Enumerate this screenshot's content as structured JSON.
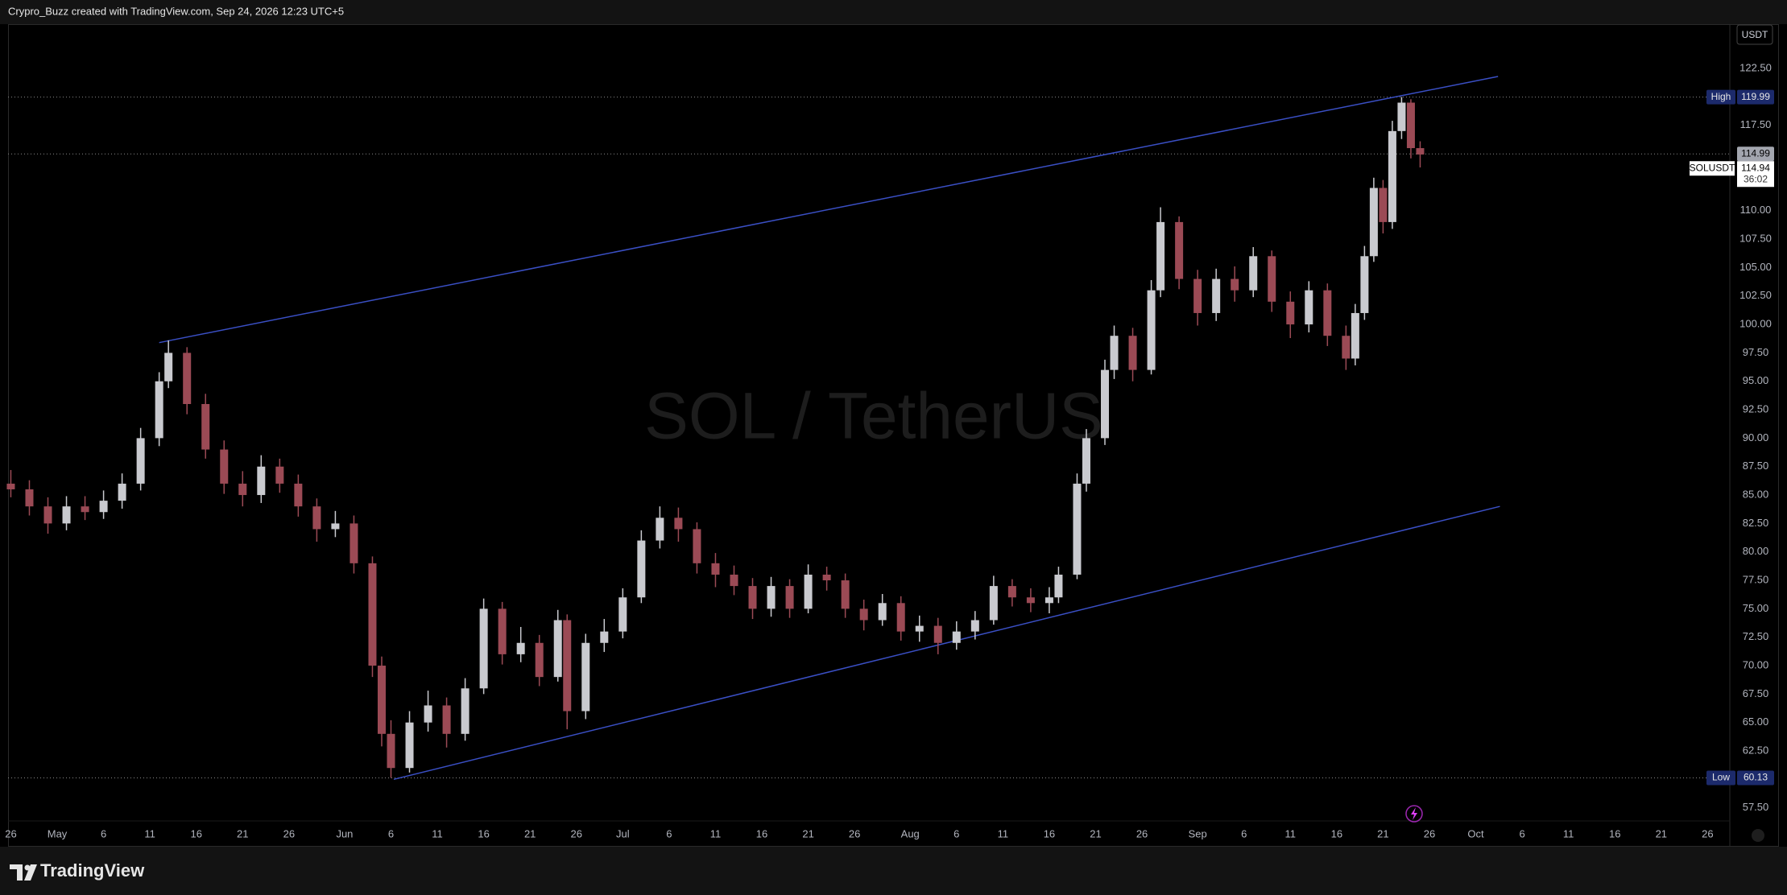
{
  "chart_data": {
    "type": "candlestick",
    "header": "Crypro_Buzz created with TradingView.com, Sep 24, 2026 12:23 UTC+5",
    "title": "SOL / TetherUS",
    "currency": "USDT",
    "symbol": "SOLUSDT",
    "brand": "TradingView",
    "up_color": "#c9cacf",
    "down_color": "#9b4a55",
    "trendline_color": "#3a4fc4",
    "x": [
      116,
      118,
      120,
      122,
      124,
      126,
      128,
      130,
      132,
      133,
      135,
      137,
      139,
      141,
      143,
      145,
      147,
      149,
      151,
      153,
      155,
      156,
      157,
      159,
      161,
      163,
      165,
      167,
      169,
      171,
      173,
      175,
      176,
      178,
      180,
      182,
      184,
      186,
      188,
      190,
      192,
      194,
      196,
      198,
      200,
      202,
      204,
      206,
      208,
      210,
      212,
      214,
      216,
      218,
      220,
      222,
      224,
      226,
      228,
      229,
      231,
      232,
      234,
      235,
      237,
      239,
      240,
      242,
      244,
      246,
      248,
      250,
      252,
      254,
      256,
      258,
      260,
      261,
      262,
      263,
      264,
      265,
      266,
      267,
      268
    ],
    "open": [
      86,
      85.5,
      84,
      82.5,
      84,
      83.5,
      84.5,
      86,
      90,
      95,
      97.5,
      93,
      89,
      86,
      85,
      87.5,
      86,
      84,
      82,
      82.5,
      79,
      70,
      64,
      61,
      65,
      66.5,
      64,
      68,
      75,
      71,
      72,
      69,
      74,
      66,
      72,
      73,
      76,
      81,
      83,
      82,
      79,
      78,
      77,
      75,
      77,
      75,
      78,
      77.5,
      75,
      74,
      75.5,
      73,
      73.5,
      72,
      73,
      74,
      77,
      76,
      75.5,
      76,
      78,
      86,
      90,
      96,
      99,
      96,
      103,
      109,
      104,
      101,
      104,
      103,
      106,
      102,
      100,
      103,
      99,
      97,
      101,
      106,
      112,
      109,
      117,
      119.5,
      115.5
    ],
    "high": [
      87.2,
      86.3,
      84.8,
      84.9,
      84.9,
      85.4,
      86.9,
      90.9,
      95.8,
      98.6,
      98.0,
      93.9,
      89.8,
      87.1,
      88.5,
      88.2,
      86.8,
      84.7,
      83.6,
      83.2,
      79.6,
      70.8,
      65.2,
      66.0,
      67.8,
      67.2,
      68.9,
      75.9,
      75.6,
      73.4,
      72.7,
      74.9,
      74.5,
      72.8,
      74.1,
      76.8,
      81.9,
      84.0,
      83.9,
      82.6,
      79.9,
      78.8,
      77.7,
      77.8,
      77.6,
      78.9,
      78.7,
      78.1,
      75.8,
      76.3,
      76.1,
      74.4,
      74.2,
      73.9,
      74.8,
      77.9,
      77.6,
      76.8,
      76.9,
      78.7,
      86.9,
      90.8,
      96.9,
      99.9,
      99.7,
      103.9,
      110.3,
      109.5,
      104.8,
      104.9,
      105.1,
      106.8,
      106.5,
      102.9,
      103.8,
      103.6,
      99.9,
      101.8,
      106.9,
      112.9,
      112.7,
      117.9,
      119.99,
      119.8,
      116.1
    ],
    "low": [
      84.8,
      83.2,
      81.6,
      81.9,
      82.8,
      82.9,
      83.8,
      85.4,
      89.3,
      94.4,
      92.1,
      88.2,
      85.1,
      84.0,
      84.3,
      85.2,
      83.1,
      80.9,
      81.3,
      78.1,
      69.0,
      62.9,
      60.13,
      60.6,
      64.2,
      62.8,
      63.4,
      67.5,
      70.1,
      70.3,
      68.2,
      68.6,
      64.4,
      65.3,
      71.2,
      72.4,
      75.5,
      80.3,
      80.9,
      78.1,
      76.9,
      76.2,
      74.1,
      74.3,
      74.2,
      74.6,
      76.6,
      74.2,
      73.1,
      73.5,
      72.2,
      72.1,
      71.0,
      71.4,
      72.3,
      73.6,
      75.2,
      74.7,
      74.6,
      75.5,
      77.6,
      85.3,
      89.4,
      95.2,
      95.0,
      95.6,
      102.4,
      103.1,
      99.9,
      100.3,
      102.0,
      102.4,
      101.1,
      98.8,
      99.3,
      98.1,
      96.0,
      96.4,
      100.4,
      105.5,
      108.0,
      108.4,
      116.3,
      114.6,
      113.8
    ],
    "close": [
      85.5,
      84,
      82.5,
      84,
      83.5,
      84.5,
      86,
      90,
      95,
      97.5,
      93,
      89,
      86,
      85,
      87.5,
      86,
      84,
      82,
      82.5,
      79,
      70,
      64,
      61,
      65,
      66.5,
      64,
      68,
      75,
      71,
      72,
      69,
      74,
      66,
      72,
      73,
      76,
      81,
      83,
      82,
      79,
      78,
      77,
      75,
      77,
      75,
      78,
      77.5,
      75,
      74,
      75.5,
      73,
      73.5,
      72,
      73,
      74,
      77,
      76,
      75.5,
      76,
      78,
      86,
      90,
      96,
      99,
      96,
      103,
      109,
      104,
      101,
      104,
      103,
      106,
      102,
      100,
      103,
      99,
      97,
      101,
      106,
      112,
      109,
      117,
      119.5,
      115.5,
      114.94
    ],
    "xlim": [
      115.7,
      301.4
    ],
    "xticks": [
      {
        "value": 116,
        "label": "26"
      },
      {
        "value": 121,
        "label": "May"
      },
      {
        "value": 126,
        "label": "6"
      },
      {
        "value": 131,
        "label": "11"
      },
      {
        "value": 136,
        "label": "16"
      },
      {
        "value": 141,
        "label": "21"
      },
      {
        "value": 146,
        "label": "26"
      },
      {
        "value": 152,
        "label": "Jun"
      },
      {
        "value": 157,
        "label": "6"
      },
      {
        "value": 162,
        "label": "11"
      },
      {
        "value": 167,
        "label": "16"
      },
      {
        "value": 172,
        "label": "21"
      },
      {
        "value": 177,
        "label": "26"
      },
      {
        "value": 182,
        "label": "Jul"
      },
      {
        "value": 187,
        "label": "6"
      },
      {
        "value": 192,
        "label": "11"
      },
      {
        "value": 197,
        "label": "16"
      },
      {
        "value": 202,
        "label": "21"
      },
      {
        "value": 207,
        "label": "26"
      },
      {
        "value": 213,
        "label": "Aug"
      },
      {
        "value": 218,
        "label": "6"
      },
      {
        "value": 223,
        "label": "11"
      },
      {
        "value": 228,
        "label": "16"
      },
      {
        "value": 233,
        "label": "21"
      },
      {
        "value": 238,
        "label": "26"
      },
      {
        "value": 244,
        "label": "Sep"
      },
      {
        "value": 249,
        "label": "6"
      },
      {
        "value": 254,
        "label": "11"
      },
      {
        "value": 259,
        "label": "16"
      },
      {
        "value": 264,
        "label": "21"
      },
      {
        "value": 269,
        "label": "26"
      },
      {
        "value": 274,
        "label": "Oct"
      },
      {
        "value": 279,
        "label": "6"
      },
      {
        "value": 284,
        "label": "11"
      },
      {
        "value": 289,
        "label": "16"
      },
      {
        "value": 294,
        "label": "21"
      },
      {
        "value": 299,
        "label": "26"
      }
    ],
    "ylim": [
      54.15,
      126.33
    ],
    "yticks": [
      {
        "value": 57.5,
        "label": "57.50"
      },
      {
        "value": 62.5,
        "label": "62.50"
      },
      {
        "value": 65,
        "label": "65.00"
      },
      {
        "value": 67.5,
        "label": "67.50"
      },
      {
        "value": 70,
        "label": "70.00"
      },
      {
        "value": 72.5,
        "label": "72.50"
      },
      {
        "value": 75,
        "label": "75.00"
      },
      {
        "value": 77.5,
        "label": "77.50"
      },
      {
        "value": 80,
        "label": "80.00"
      },
      {
        "value": 82.5,
        "label": "82.50"
      },
      {
        "value": 85,
        "label": "85.00"
      },
      {
        "value": 87.5,
        "label": "87.50"
      },
      {
        "value": 90,
        "label": "90.00"
      },
      {
        "value": 92.5,
        "label": "92.50"
      },
      {
        "value": 95,
        "label": "95.00"
      },
      {
        "value": 97.5,
        "label": "97.50"
      },
      {
        "value": 100,
        "label": "100.00"
      },
      {
        "value": 102.5,
        "label": "102.50"
      },
      {
        "value": 105,
        "label": "105.00"
      },
      {
        "value": 107.5,
        "label": "107.50"
      },
      {
        "value": 110,
        "label": "110.00"
      },
      {
        "value": 117.5,
        "label": "117.50"
      },
      {
        "value": 122.5,
        "label": "122.50"
      }
    ],
    "trendlines": [
      {
        "x": [
          132,
          276.4
        ],
        "y": [
          98.4,
          121.8
        ]
      },
      {
        "x": [
          157.3,
          276.6
        ],
        "y": [
          60.0,
          84.0
        ]
      }
    ],
    "high_marker": {
      "label": "High",
      "value": 119.99
    },
    "low_marker": {
      "label": "Low",
      "value": 60.13
    },
    "last_price": 114.99,
    "current_price": 114.94,
    "countdown": "36:02"
  }
}
